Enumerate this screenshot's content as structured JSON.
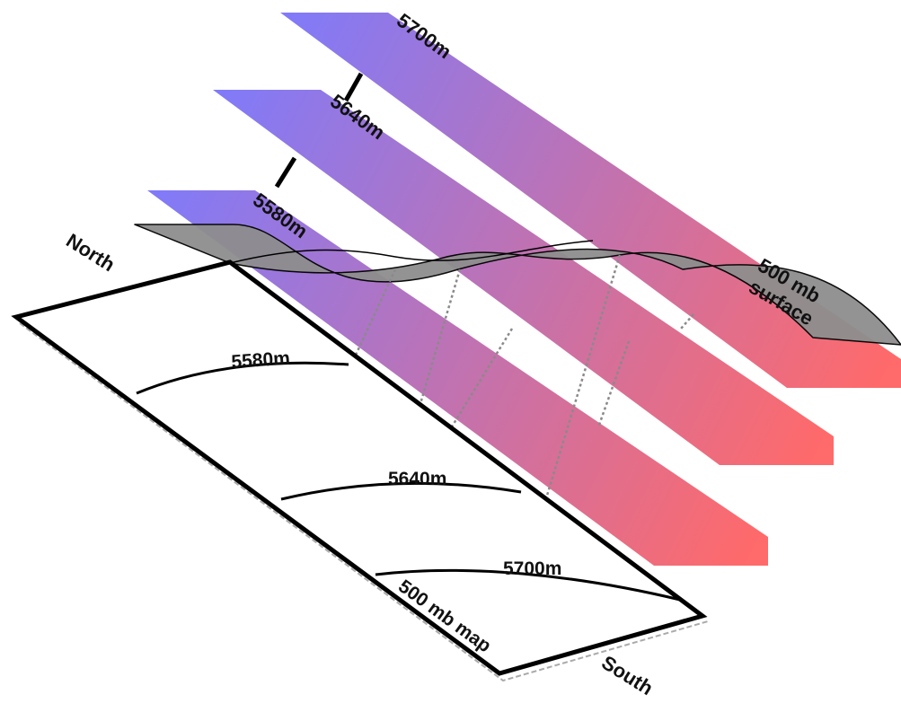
{
  "colors": {
    "plane_cold": "#7b7bff",
    "plane_warm": "#ff6a6a",
    "surface": "#8c8c8c",
    "outline": "#000000"
  },
  "planes": [
    {
      "label": "5700m"
    },
    {
      "label": "5640m"
    },
    {
      "label": "5580m"
    }
  ],
  "surface": {
    "label_line1": "500 mb",
    "label_line2": "surface"
  },
  "map": {
    "label": "500 mb map",
    "contours": [
      "5580m",
      "5640m",
      "5700m"
    ]
  },
  "directions": {
    "north": "North",
    "south": "South"
  }
}
